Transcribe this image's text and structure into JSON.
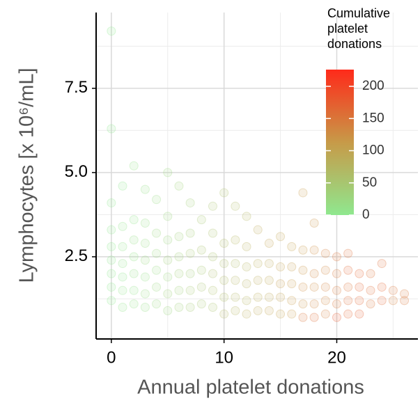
{
  "chart_data": {
    "type": "scatter",
    "x_label": "Annual platelet donations",
    "y_label": "Lymphocytes [x 10⁶/mL]",
    "xlim": [
      -1.35,
      27.2
    ],
    "ylim": [
      0.06,
      9.75
    ],
    "xticks": [
      0,
      10,
      20
    ],
    "yticks": [
      {
        "value": 2.5,
        "label": "2.5"
      },
      {
        "value": 5,
        "label": "5.0"
      },
      {
        "value": 7.5,
        "label": "7.5"
      }
    ],
    "x_minor_grid": [
      5,
      15,
      25
    ],
    "y_minor_grid": [
      1.25,
      3.75,
      6.25,
      8.75
    ],
    "grid": true,
    "colorbar": {
      "title": "Cumulative platelet donations",
      "lim": [
        0,
        226
      ],
      "ticks": [
        0,
        50,
        100,
        150,
        200
      ],
      "colorscale": [
        "#8fe88f",
        "#c79a48",
        "#ff2a1a"
      ]
    },
    "x": [
      0,
      0,
      0,
      0,
      0,
      0,
      0,
      0,
      0,
      1,
      1,
      1,
      1,
      1,
      1,
      1,
      2,
      2,
      2,
      2,
      2,
      2,
      2,
      3,
      3,
      3,
      3,
      3,
      3,
      3,
      4,
      4,
      4,
      4,
      4,
      4,
      5,
      5,
      5,
      5,
      5,
      5,
      5,
      6,
      6,
      6,
      6,
      6,
      6,
      7,
      7,
      7,
      7,
      7,
      7,
      8,
      8,
      8,
      8,
      8,
      9,
      9,
      9,
      9,
      9,
      9,
      10,
      10,
      10,
      10,
      10,
      10,
      11,
      11,
      11,
      11,
      11,
      11,
      12,
      12,
      12,
      12,
      12,
      12,
      13,
      13,
      13,
      13,
      13,
      14,
      14,
      14,
      14,
      14,
      15,
      15,
      15,
      15,
      15,
      16,
      16,
      16,
      16,
      16,
      17,
      17,
      17,
      17,
      17,
      17,
      18,
      18,
      18,
      18,
      18,
      18,
      19,
      19,
      19,
      19,
      19,
      20,
      20,
      20,
      20,
      20,
      21,
      21,
      21,
      21,
      21,
      22,
      22,
      22,
      22,
      23,
      23,
      23,
      24,
      24,
      24,
      25,
      25,
      26,
      26
    ],
    "values": [
      1.2,
      1.6,
      2.0,
      2.4,
      2.8,
      3.3,
      4.1,
      6.3,
      9.2,
      1.0,
      1.5,
      1.9,
      2.3,
      2.8,
      3.4,
      4.6,
      1.1,
      1.5,
      2.0,
      2.5,
      3.0,
      3.6,
      5.2,
      1.0,
      1.4,
      1.9,
      2.4,
      2.9,
      3.5,
      4.5,
      1.1,
      1.6,
      2.1,
      2.6,
      3.2,
      4.2,
      0.9,
      1.4,
      1.9,
      2.4,
      3.0,
      3.7,
      5.0,
      1.0,
      1.5,
      2.0,
      2.5,
      3.1,
      4.6,
      1.0,
      1.5,
      2.0,
      2.6,
      3.2,
      4.1,
      1.1,
      1.6,
      2.1,
      2.7,
      3.6,
      1.0,
      1.5,
      2.0,
      2.5,
      3.2,
      4.0,
      0.8,
      1.3,
      1.8,
      2.3,
      2.9,
      4.4,
      0.9,
      1.3,
      1.8,
      2.3,
      3.0,
      4.0,
      0.8,
      1.2,
      1.7,
      2.2,
      2.8,
      3.7,
      0.9,
      1.3,
      1.8,
      2.3,
      3.3,
      0.9,
      1.3,
      1.8,
      2.3,
      2.9,
      0.8,
      1.3,
      1.7,
      2.2,
      3.1,
      0.8,
      1.2,
      1.7,
      2.2,
      2.8,
      0.7,
      1.1,
      1.6,
      2.1,
      2.7,
      4.4,
      0.7,
      1.1,
      1.6,
      2.0,
      2.7,
      3.5,
      0.8,
      1.2,
      1.6,
      2.1,
      2.6,
      0.7,
      1.1,
      1.5,
      2.0,
      2.5,
      0.8,
      1.2,
      1.6,
      2.1,
      2.6,
      0.8,
      1.2,
      1.6,
      2.0,
      1.1,
      1.5,
      2.0,
      1.2,
      1.6,
      2.3,
      1.2,
      1.5,
      1.2,
      1.4
    ],
    "color_values": [
      0,
      2,
      1,
      3,
      0,
      1,
      2,
      1,
      0,
      4,
      6,
      3,
      8,
      5,
      4,
      2,
      10,
      8,
      12,
      9,
      14,
      7,
      10,
      15,
      18,
      12,
      20,
      16,
      14,
      11,
      20,
      24,
      18,
      22,
      25,
      19,
      28,
      30,
      26,
      32,
      27,
      29,
      25,
      35,
      33,
      38,
      36,
      34,
      30,
      42,
      45,
      40,
      44,
      41,
      38,
      48,
      50,
      46,
      52,
      47,
      55,
      58,
      60,
      54,
      57,
      52,
      70,
      62,
      65,
      60,
      68,
      58,
      75,
      70,
      72,
      68,
      74,
      66,
      85,
      78,
      80,
      76,
      82,
      74,
      90,
      86,
      88,
      84,
      92,
      98,
      94,
      96,
      90,
      100,
      105,
      100,
      108,
      102,
      98,
      115,
      110,
      112,
      108,
      106,
      150,
      120,
      125,
      118,
      115,
      110,
      160,
      130,
      128,
      135,
      125,
      122,
      140,
      135,
      138,
      132,
      142,
      180,
      150,
      145,
      148,
      155,
      170,
      160,
      155,
      165,
      158,
      175,
      168,
      165,
      170,
      150,
      160,
      155,
      165,
      170,
      160,
      140,
      150,
      150,
      145
    ]
  }
}
